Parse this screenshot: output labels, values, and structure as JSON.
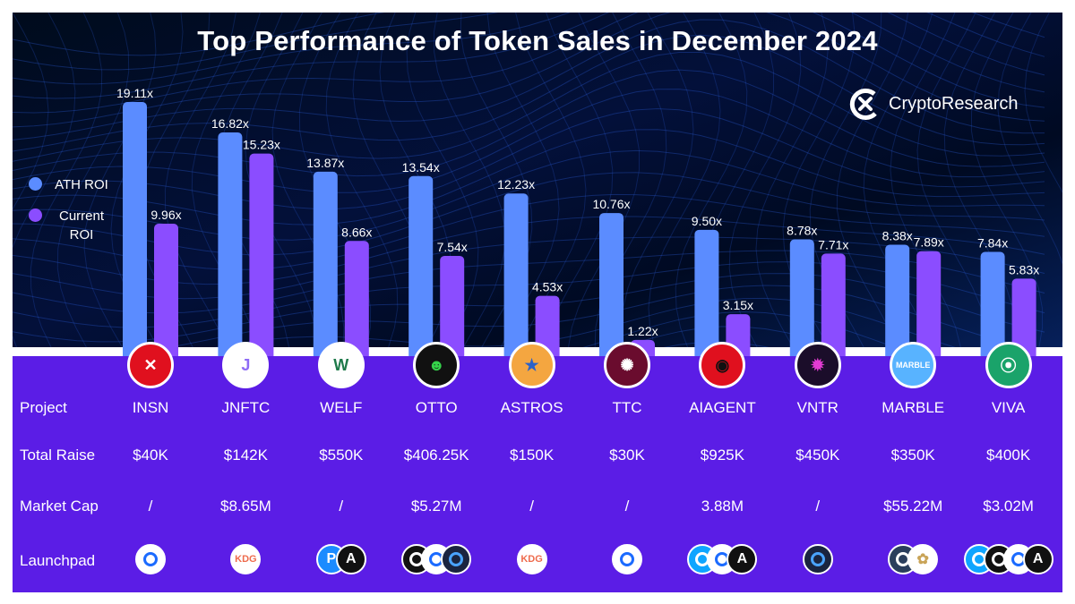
{
  "title": "Top Performance of Token Sales in December 2024",
  "brand": {
    "name": "CryptoResearch",
    "logo_icon": "cryptoresearch-logo-icon"
  },
  "colors": {
    "ath": "#5b8cff",
    "current": "#8b4dff",
    "panel": "#5b1de6",
    "text": "#ffffff"
  },
  "legend": [
    {
      "label": "ATH ROI",
      "color": "#5b8cff"
    },
    {
      "label": "Current ROI",
      "color": "#8b4dff"
    }
  ],
  "chart_data": {
    "type": "bar",
    "title": "Top Performance of Token Sales in December 2024",
    "categories": [
      "INSN",
      "JNFTC",
      "WELF",
      "OTTO",
      "ASTROS",
      "TTC",
      "AIAGENT",
      "VNTR",
      "MARBLE",
      "VIVA"
    ],
    "series": [
      {
        "name": "ATH ROI",
        "values": [
          19.11,
          16.82,
          13.87,
          13.54,
          12.23,
          10.76,
          9.5,
          8.78,
          8.38,
          7.84
        ],
        "labels": [
          "19.11x",
          "16.82x",
          "13.87x",
          "13.54x",
          "12.23x",
          "10.76x",
          "9.50x",
          "8.78x",
          "8.38x",
          "7.84x"
        ]
      },
      {
        "name": "Current ROI",
        "values": [
          9.96,
          15.23,
          8.66,
          7.54,
          4.53,
          1.22,
          3.15,
          7.71,
          7.89,
          5.83
        ],
        "labels": [
          "9.96x",
          "15.23x",
          "8.66x",
          "7.54x",
          "4.53x",
          "1.22x",
          "3.15x",
          "7.71x",
          "7.89x",
          "5.83x"
        ]
      }
    ],
    "ylim": [
      0,
      20
    ],
    "grid": false,
    "legend_position": "left"
  },
  "rows": {
    "project_label": "Project",
    "total_raise_label": "Total Raise",
    "market_cap_label": "Market Cap",
    "launchpad_label": "Launchpad"
  },
  "projects": [
    {
      "name": "INSN",
      "total_raise": "$40K",
      "market_cap": "/",
      "logo": {
        "icon": "insn-logo-icon",
        "bg": "#e0101e",
        "fg": "#ffffff",
        "glyph": "✕"
      },
      "launchpads": [
        {
          "icon": "coin-launchpad-icon",
          "text": "",
          "bg": "#ffffff",
          "fg": "#1b6bff"
        }
      ]
    },
    {
      "name": "JNFTC",
      "total_raise": "$142K",
      "market_cap": "$8.65M",
      "logo": {
        "icon": "jnftc-logo-icon",
        "bg": "#ffffff",
        "fg": "#8e6cf5",
        "glyph": "J"
      },
      "launchpads": [
        {
          "icon": "kdg-launchpad-icon",
          "text": "KDG",
          "bg": "#ffffff",
          "fg": "#ee6b4d"
        }
      ]
    },
    {
      "name": "WELF",
      "total_raise": "$550K",
      "market_cap": "/",
      "logo": {
        "icon": "welf-logo-icon",
        "bg": "#ffffff",
        "fg": "#1e7a4a",
        "glyph": "W"
      },
      "launchpads": [
        {
          "icon": "p-launchpad-icon",
          "text": "P",
          "bg": "#1b8bff",
          "fg": "#ffffff"
        },
        {
          "icon": "a-launchpad-icon",
          "text": "A",
          "bg": "#111111",
          "fg": "#ffffff"
        }
      ]
    },
    {
      "name": "OTTO",
      "total_raise": "$406.25K",
      "market_cap": "$5.27M",
      "logo": {
        "icon": "otto-logo-icon",
        "bg": "#111111",
        "fg": "#35d24a",
        "glyph": "☻"
      },
      "launchpads": [
        {
          "icon": "frame-launchpad-icon",
          "text": "",
          "bg": "#111111",
          "fg": "#ffffff"
        },
        {
          "icon": "coin-launchpad-icon",
          "text": "",
          "bg": "#ffffff",
          "fg": "#1b6bff"
        },
        {
          "icon": "leaf-launchpad-icon",
          "text": "",
          "bg": "#1a2440",
          "fg": "#4aa3ff"
        }
      ]
    },
    {
      "name": "ASTROS",
      "total_raise": "$150K",
      "market_cap": "/",
      "logo": {
        "icon": "astros-logo-icon",
        "bg": "#f4a640",
        "fg": "#2b62c9",
        "glyph": "★"
      },
      "launchpads": [
        {
          "icon": "kdg-launchpad-icon",
          "text": "KDG",
          "bg": "#ffffff",
          "fg": "#ee6b4d"
        }
      ]
    },
    {
      "name": "TTC",
      "total_raise": "$30K",
      "market_cap": "/",
      "logo": {
        "icon": "ttc-logo-icon",
        "bg": "#6a0c2e",
        "fg": "#ffffff",
        "glyph": "✺"
      },
      "launchpads": [
        {
          "icon": "coin-launchpad-icon",
          "text": "",
          "bg": "#ffffff",
          "fg": "#1b6bff"
        }
      ]
    },
    {
      "name": "AIAGENT",
      "total_raise": "$925K",
      "market_cap": "3.88M",
      "logo": {
        "icon": "aiagent-logo-icon",
        "bg": "#e0101e",
        "fg": "#111111",
        "glyph": "◉"
      },
      "launchpads": [
        {
          "icon": "ring-launchpad-icon",
          "text": "",
          "bg": "#0ea5ff",
          "fg": "#ffffff"
        },
        {
          "icon": "coin-launchpad-icon",
          "text": "",
          "bg": "#ffffff",
          "fg": "#1b6bff"
        },
        {
          "icon": "a-launchpad-icon",
          "text": "A",
          "bg": "#111111",
          "fg": "#ffffff"
        }
      ]
    },
    {
      "name": "VNTR",
      "total_raise": "$450K",
      "market_cap": "/",
      "logo": {
        "icon": "vntr-logo-icon",
        "bg": "#1b0d2a",
        "fg": "#e23bd2",
        "glyph": "✹"
      },
      "launchpads": [
        {
          "icon": "leaf-launchpad-icon",
          "text": "",
          "bg": "#1a2440",
          "fg": "#4aa3ff"
        }
      ]
    },
    {
      "name": "MARBLE",
      "total_raise": "$350K",
      "market_cap": "$55.22M",
      "logo": {
        "icon": "marble-logo-icon",
        "bg": "#58b3ff",
        "fg": "#ffffff",
        "glyph": "MARBLE"
      },
      "launchpads": [
        {
          "icon": "window-launchpad-icon",
          "text": "",
          "bg": "#2a3e5c",
          "fg": "#ffffff"
        },
        {
          "icon": "flower-launchpad-icon",
          "text": "✿",
          "bg": "#ffffff",
          "fg": "#c9a458"
        }
      ]
    },
    {
      "name": "VIVA",
      "total_raise": "$400K",
      "market_cap": "$3.02M",
      "logo": {
        "icon": "viva-logo-icon",
        "bg": "#1aa36a",
        "fg": "#ffffff",
        "glyph": "⦿"
      },
      "launchpads": [
        {
          "icon": "ring-launchpad-icon",
          "text": "",
          "bg": "#0ea5ff",
          "fg": "#ffffff"
        },
        {
          "icon": "frame-launchpad-icon",
          "text": "",
          "bg": "#111111",
          "fg": "#ffffff"
        },
        {
          "icon": "coin-launchpad-icon",
          "text": "",
          "bg": "#ffffff",
          "fg": "#1b6bff"
        },
        {
          "icon": "a-launchpad-icon",
          "text": "A",
          "bg": "#111111",
          "fg": "#ffffff"
        }
      ]
    }
  ]
}
